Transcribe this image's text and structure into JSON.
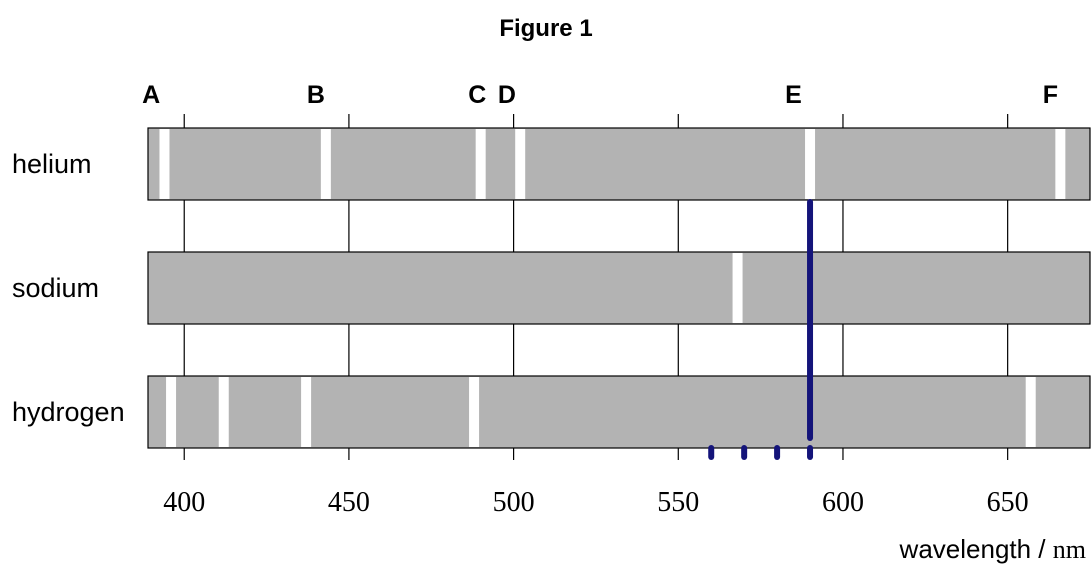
{
  "figure": {
    "title": "Figure 1",
    "x_axis_unit_label_text": "wavelength / ",
    "x_axis_unit_label_unit": "nm"
  },
  "chart_data": {
    "type": "spectrum",
    "xlim": [
      389,
      675
    ],
    "x_ticks": [
      400,
      450,
      500,
      550,
      600,
      650
    ],
    "x_tick_labels": [
      "400",
      "450",
      "500",
      "550",
      "600",
      "650"
    ],
    "markers": [
      {
        "label": "A",
        "x": 393
      },
      {
        "label": "B",
        "x": 443
      },
      {
        "label": "C",
        "x": 492
      },
      {
        "label": "D",
        "x": 501
      },
      {
        "label": "E",
        "x": 588
      },
      {
        "label": "F",
        "x": 666
      }
    ],
    "spectra": [
      {
        "name": "helium",
        "lines": [
          394,
          443,
          490,
          502,
          590,
          666
        ]
      },
      {
        "name": "sodium",
        "lines": [
          568
        ]
      },
      {
        "name": "hydrogen",
        "lines": [
          396,
          412,
          437,
          488,
          657
        ]
      }
    ],
    "marked_line": {
      "x": 590,
      "y_from": "helium",
      "y_to": "hydrogen"
    },
    "ticks_below": [
      560,
      570,
      580,
      590
    ],
    "band_color": "#b3b3b3",
    "line_color": "#ffffff",
    "marker_color": "#14147a"
  }
}
